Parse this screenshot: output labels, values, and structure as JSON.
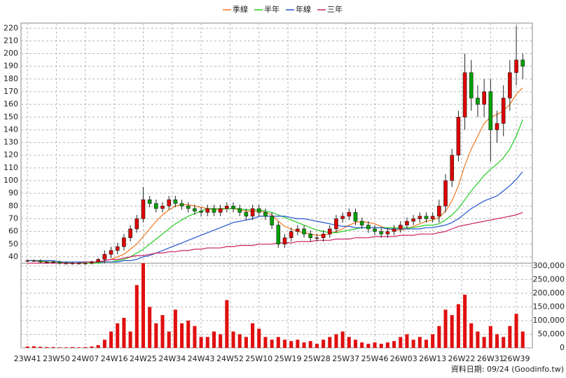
{
  "chart_data": {
    "type": "candlestick",
    "legend_position": "top",
    "grid": true,
    "up_color": "#e00000",
    "down_color": "#00a000",
    "volume_color": "#e01010",
    "x": [
      0,
      2,
      4,
      6,
      8,
      10,
      12,
      14,
      16,
      18,
      20,
      22,
      24,
      26,
      28,
      30,
      32,
      34,
      36,
      38,
      40,
      42,
      44,
      46,
      48,
      50,
      52,
      54,
      56,
      58,
      60,
      62,
      64,
      66,
      68,
      70,
      72,
      74,
      76,
      78,
      80,
      82,
      84,
      86,
      88,
      90,
      92,
      94,
      96,
      98,
      100,
      102,
      104,
      106,
      108,
      110,
      112,
      114,
      116,
      118,
      120,
      122,
      124,
      126,
      128,
      130,
      132,
      134,
      136,
      138,
      140,
      142,
      144,
      146,
      148,
      150,
      152,
      154
    ],
    "xlim": [
      -2,
      157
    ],
    "xticks": [
      {
        "value": 0,
        "label": "23W41"
      },
      {
        "value": 9,
        "label": "23W50"
      },
      {
        "value": 18,
        "label": "24W07"
      },
      {
        "value": 27,
        "label": "24W16"
      },
      {
        "value": 36,
        "label": "24W25"
      },
      {
        "value": 45,
        "label": "24W34"
      },
      {
        "value": 54,
        "label": "24W43"
      },
      {
        "value": 63,
        "label": "24W52"
      },
      {
        "value": 72,
        "label": "25W10"
      },
      {
        "value": 81,
        "label": "25W19"
      },
      {
        "value": 90,
        "label": "25W28"
      },
      {
        "value": 99,
        "label": "25W37"
      },
      {
        "value": 108,
        "label": "25W46"
      },
      {
        "value": 117,
        "label": "26W03"
      },
      {
        "value": 126,
        "label": "26W13"
      },
      {
        "value": 135,
        "label": "26W22"
      },
      {
        "value": 144,
        "label": "26W31"
      },
      {
        "value": 152,
        "label": "26W39"
      }
    ],
    "ylim": [
      35,
      224
    ],
    "yticks": [
      40,
      50,
      60,
      70,
      80,
      90,
      100,
      110,
      120,
      130,
      140,
      150,
      160,
      170,
      180,
      190,
      200,
      210,
      220
    ],
    "y2lim": [
      0,
      310000
    ],
    "y2ticks": [
      0,
      {
        "value": 50000,
        "label": "50,000"
      },
      {
        "value": 100000,
        "label": "100,000"
      },
      {
        "value": 150000,
        "label": "150,000"
      },
      {
        "value": 200000,
        "label": "200,000"
      },
      {
        "value": 250000,
        "label": "250,000"
      },
      {
        "value": 300000,
        "label": "300,000"
      }
    ],
    "open": [
      37,
      37,
      37,
      36,
      36,
      36,
      35,
      35,
      35,
      35,
      35,
      36,
      38,
      42,
      45,
      48,
      55,
      62,
      70,
      85,
      82,
      78,
      80,
      85,
      82,
      80,
      78,
      76,
      75,
      78,
      75,
      78,
      80,
      78,
      75,
      72,
      78,
      75,
      72,
      65,
      50,
      55,
      60,
      62,
      58,
      55,
      55,
      58,
      62,
      70,
      72,
      75,
      68,
      65,
      62,
      60,
      58,
      60,
      62,
      65,
      68,
      70,
      72,
      70,
      72,
      80,
      100,
      120,
      150,
      185,
      165,
      160,
      170,
      140,
      145,
      165,
      185,
      195
    ],
    "high": [
      38,
      38,
      38,
      37,
      37,
      37,
      36,
      36,
      36,
      36,
      37,
      39,
      45,
      48,
      51,
      58,
      65,
      73,
      95,
      88,
      85,
      83,
      88,
      88,
      85,
      83,
      81,
      79,
      81,
      81,
      81,
      83,
      83,
      81,
      78,
      81,
      81,
      78,
      75,
      68,
      58,
      63,
      65,
      65,
      61,
      58,
      61,
      65,
      73,
      75,
      78,
      78,
      71,
      68,
      65,
      63,
      63,
      65,
      68,
      71,
      73,
      75,
      75,
      75,
      85,
      105,
      125,
      155,
      200,
      195,
      175,
      180,
      180,
      155,
      175,
      195,
      222,
      200
    ],
    "low": [
      36,
      36,
      35,
      35,
      35,
      34,
      34,
      34,
      34,
      34,
      34,
      35,
      35,
      39,
      42,
      45,
      52,
      59,
      67,
      79,
      75,
      75,
      77,
      79,
      77,
      75,
      73,
      72,
      72,
      72,
      72,
      75,
      75,
      72,
      69,
      69,
      72,
      69,
      62,
      47,
      47,
      52,
      57,
      55,
      52,
      52,
      52,
      55,
      59,
      67,
      69,
      65,
      62,
      59,
      57,
      55,
      55,
      57,
      59,
      62,
      65,
      67,
      67,
      67,
      67,
      75,
      95,
      115,
      140,
      155,
      150,
      150,
      115,
      130,
      135,
      155,
      175,
      180
    ],
    "close": [
      37,
      37,
      36,
      36,
      36,
      35,
      35,
      35,
      35,
      35,
      36,
      38,
      42,
      45,
      48,
      55,
      62,
      70,
      85,
      82,
      78,
      80,
      85,
      82,
      80,
      78,
      76,
      75,
      78,
      75,
      78,
      80,
      78,
      75,
      72,
      78,
      75,
      72,
      65,
      50,
      55,
      60,
      62,
      58,
      55,
      55,
      58,
      62,
      70,
      72,
      75,
      68,
      65,
      62,
      60,
      58,
      60,
      62,
      65,
      68,
      70,
      72,
      70,
      72,
      80,
      100,
      120,
      150,
      185,
      165,
      160,
      170,
      140,
      145,
      165,
      185,
      195,
      190
    ],
    "volume": [
      5000,
      6000,
      4000,
      3000,
      3000,
      2000,
      2000,
      3000,
      2000,
      3000,
      5000,
      10000,
      30000,
      60000,
      90000,
      110000,
      60000,
      230000,
      310000,
      150000,
      90000,
      120000,
      60000,
      140000,
      90000,
      100000,
      80000,
      40000,
      40000,
      60000,
      50000,
      175000,
      60000,
      50000,
      40000,
      90000,
      70000,
      40000,
      30000,
      40000,
      30000,
      25000,
      30000,
      20000,
      25000,
      15000,
      30000,
      40000,
      50000,
      60000,
      40000,
      30000,
      20000,
      15000,
      20000,
      15000,
      20000,
      25000,
      40000,
      50000,
      30000,
      40000,
      30000,
      50000,
      80000,
      140000,
      120000,
      160000,
      195000,
      90000,
      60000,
      40000,
      80000,
      50000,
      40000,
      80000,
      125000,
      60000
    ],
    "series": [
      {
        "name": "季線",
        "color": "#f07820",
        "values": [
          37,
          37,
          36,
          36,
          36,
          36,
          35,
          35,
          35,
          35,
          35,
          36,
          37,
          38,
          40,
          42,
          46,
          50,
          56,
          62,
          68,
          73,
          77,
          80,
          81,
          81,
          80,
          79,
          78,
          77,
          77,
          78,
          78,
          77,
          76,
          76,
          76,
          75,
          73,
          68,
          64,
          62,
          60,
          59,
          58,
          57,
          57,
          58,
          60,
          62,
          65,
          67,
          68,
          67,
          66,
          64,
          62,
          61,
          61,
          62,
          64,
          66,
          68,
          69,
          71,
          76,
          84,
          96,
          112,
          125,
          135,
          145,
          150,
          152,
          155,
          160,
          168,
          173
        ]
      },
      {
        "name": "半年",
        "color": "#22cc22",
        "values": [
          37,
          37,
          37,
          36,
          36,
          36,
          36,
          35,
          35,
          35,
          35,
          35,
          36,
          36,
          37,
          38,
          40,
          43,
          46,
          50,
          54,
          58,
          62,
          66,
          69,
          72,
          74,
          76,
          78,
          78,
          78,
          78,
          78,
          78,
          77,
          77,
          77,
          76,
          75,
          73,
          71,
          69,
          67,
          65,
          63,
          61,
          60,
          59,
          59,
          60,
          61,
          62,
          63,
          63,
          63,
          63,
          63,
          63,
          63,
          63,
          63,
          64,
          65,
          65,
          66,
          69,
          73,
          78,
          85,
          92,
          98,
          104,
          109,
          113,
          118,
          125,
          135,
          148
        ]
      },
      {
        "name": "年線",
        "color": "#2255cc",
        "values": [
          37,
          37,
          37,
          37,
          37,
          36,
          36,
          36,
          36,
          36,
          36,
          36,
          36,
          36,
          36,
          37,
          37,
          38,
          40,
          41,
          43,
          45,
          47,
          49,
          51,
          53,
          55,
          57,
          59,
          61,
          63,
          65,
          67,
          68,
          69,
          70,
          72,
          72,
          72,
          72,
          72,
          71,
          70,
          70,
          69,
          68,
          67,
          66,
          65,
          64,
          64,
          63,
          63,
          63,
          63,
          63,
          62,
          62,
          62,
          62,
          62,
          62,
          63,
          63,
          64,
          65,
          67,
          70,
          74,
          78,
          81,
          84,
          86,
          88,
          92,
          96,
          101,
          107
        ]
      },
      {
        "name": "三年",
        "color": "#cc2266",
        "values": [
          35,
          35,
          35,
          35,
          35,
          35,
          35,
          35,
          35,
          36,
          36,
          36,
          37,
          38,
          38,
          39,
          40,
          41,
          41,
          42,
          43,
          43,
          44,
          44,
          45,
          45,
          46,
          46,
          47,
          47,
          47,
          48,
          48,
          49,
          49,
          49,
          50,
          50,
          50,
          51,
          51,
          51,
          52,
          52,
          52,
          53,
          53,
          53,
          54,
          54,
          54,
          55,
          55,
          55,
          56,
          56,
          56,
          56,
          57,
          57,
          57,
          58,
          58,
          58,
          59,
          60,
          62,
          64,
          65,
          66,
          67,
          68,
          69,
          70,
          71,
          72,
          73,
          75
        ]
      }
    ],
    "source_note": "資料日期: 09/24  (Goodinfo.tw)"
  }
}
